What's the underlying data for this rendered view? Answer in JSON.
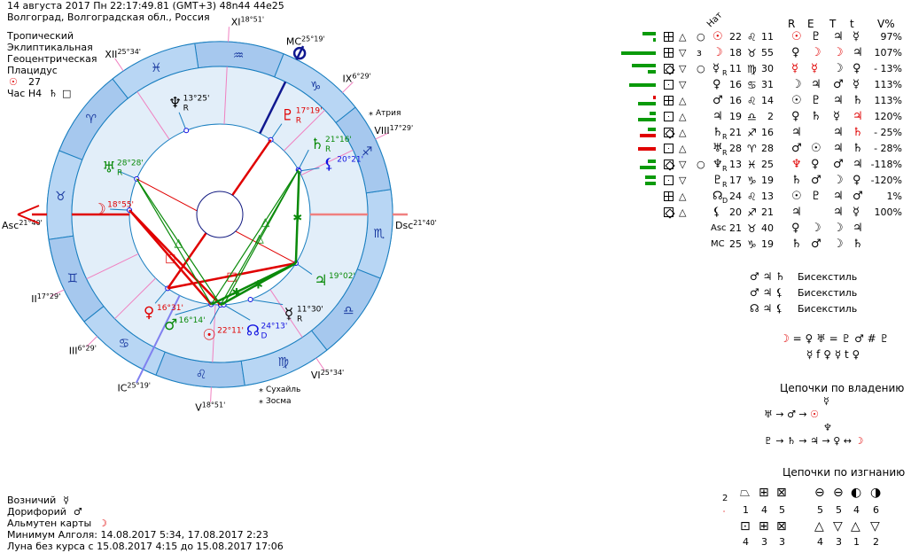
{
  "header": {
    "line1": "14 августа 2017  Пн  22:17:49.81 (GMT+3) 48n44  44e25",
    "line2": "Волгоград, Волгоградская обл., Россия"
  },
  "settings": [
    "Тропический",
    "Эклиптикальная",
    "Геоцентрическая",
    "Плацидус"
  ],
  "sun_line": {
    "glyph": "☉",
    "value": "27"
  },
  "hour_line": {
    "label": "Час H4",
    "glyph": "♄",
    "box": "□"
  },
  "colors": {
    "ring_a": "#a6c8ee",
    "ring_b": "#b8d6f4",
    "houses": "#e2eef9",
    "line": "#1a7fc0",
    "sign": "#1a3aa0",
    "cusp": "#f080c0",
    "red": "#e00000",
    "green": "#0a8a0a",
    "blue": "#1010e0"
  },
  "wheel": {
    "asc_lon": 51.67,
    "signs": [
      "♈",
      "♉",
      "♊",
      "♋",
      "♌",
      "♍",
      "♎",
      "♏",
      "♐",
      "♑",
      "♒",
      "♓"
    ],
    "houses": [
      {
        "name": "Asc",
        "deg": "21°40'",
        "lon": 51.67
      },
      {
        "name": "II",
        "deg": "17°29'",
        "lon": 77.48
      },
      {
        "name": "III",
        "deg": "6°29'",
        "lon": 96.48
      },
      {
        "name": "IC",
        "deg": "25°19'",
        "lon": 115.32
      },
      {
        "name": "V",
        "deg": "18°51'",
        "lon": 138.85
      },
      {
        "name": "VI",
        "deg": "25°34'",
        "lon": 175.57
      },
      {
        "name": "Dsc",
        "deg": "21°40'",
        "lon": 231.67
      },
      {
        "name": "VIII",
        "deg": "17°29'",
        "lon": 257.48
      },
      {
        "name": "IX",
        "deg": "6°29'",
        "lon": 276.48
      },
      {
        "name": "MC",
        "deg": "25°19'",
        "lon": 295.32
      },
      {
        "name": "XI",
        "deg": "18°51'",
        "lon": 318.85
      },
      {
        "name": "XII",
        "deg": "25°34'",
        "lon": 355.57
      }
    ],
    "planets": [
      {
        "key": "sun",
        "glyph": "☉",
        "deg": "22°11'",
        "lon": 142.18,
        "retro": "",
        "color": "#e00000"
      },
      {
        "key": "moon",
        "glyph": "☽",
        "deg": "18°55'",
        "lon": 48.92,
        "retro": "",
        "color": "#e00000"
      },
      {
        "key": "mercury",
        "glyph": "☿",
        "deg": "11°30'",
        "lon": 161.5,
        "retro": "R",
        "color": "#000000"
      },
      {
        "key": "venus",
        "glyph": "♀",
        "deg": "16°31'",
        "lon": 106.52,
        "retro": "",
        "color": "#e00000"
      },
      {
        "key": "mars",
        "glyph": "♂",
        "deg": "16°14'",
        "lon": 136.23,
        "retro": "",
        "color": "#0a8a0a"
      },
      {
        "key": "jupiter",
        "glyph": "♃",
        "deg": "19°02'",
        "lon": 199.03,
        "retro": "",
        "color": "#0a8a0a"
      },
      {
        "key": "saturn",
        "glyph": "♄",
        "deg": "21°16'",
        "lon": 261.27,
        "retro": "R",
        "color": "#0a8a0a"
      },
      {
        "key": "uranus",
        "glyph": "♅",
        "deg": "28°28'",
        "lon": 28.47,
        "retro": "R",
        "color": "#0a8a0a"
      },
      {
        "key": "neptune",
        "glyph": "♆",
        "deg": "13°25'",
        "lon": 343.42,
        "retro": "R",
        "color": "#000000"
      },
      {
        "key": "pluto",
        "glyph": "♇",
        "deg": "17°19'",
        "lon": 287.32,
        "retro": "R",
        "color": "#e00000"
      },
      {
        "key": "node",
        "glyph": "☊",
        "deg": "24°13'",
        "lon": 144.22,
        "retro": "D",
        "color": "#1010e0"
      },
      {
        "key": "lilith",
        "glyph": "⚸",
        "deg": "20°21'",
        "lon": 260.35,
        "retro": "",
        "color": "#1010e0"
      }
    ],
    "aspects": [
      {
        "a": "moon",
        "b": "mars",
        "type": "square",
        "mark": "□"
      },
      {
        "a": "moon",
        "b": "sun",
        "type": "square",
        "mark": ""
      },
      {
        "a": "venus",
        "b": "jupiter",
        "type": "square",
        "mark": "□"
      },
      {
        "a": "venus",
        "b": "pluto",
        "type": "opposition",
        "mark": ""
      },
      {
        "a": "uranus",
        "b": "jupiter",
        "type": "opposition-thin",
        "mark": ""
      },
      {
        "a": "saturn",
        "b": "sun",
        "type": "trine",
        "mark": "△"
      },
      {
        "a": "saturn",
        "b": "mars",
        "type": "trine",
        "mark": "△"
      },
      {
        "a": "saturn",
        "b": "node",
        "type": "trine",
        "mark": ""
      },
      {
        "a": "lilith",
        "b": "jupiter",
        "type": "sextile",
        "mark": "✱"
      },
      {
        "a": "jupiter",
        "b": "sun",
        "type": "sextile",
        "mark": "✱"
      },
      {
        "a": "jupiter",
        "b": "mars",
        "type": "sextile",
        "mark": "✱"
      },
      {
        "a": "uranus",
        "b": "sun",
        "type": "trine",
        "mark": "△"
      },
      {
        "a": "uranus",
        "b": "mars",
        "type": "trine",
        "mark": ""
      }
    ],
    "stars": [
      {
        "name": "Атрия"
      },
      {
        "name": "Сухайль"
      },
      {
        "name": "Зосма"
      }
    ]
  },
  "table": {
    "title": "Нат",
    "columns": [
      "R",
      "E",
      "T",
      "t",
      "V%"
    ],
    "rows": [
      {
        "bars": [
          {
            "c": "#0a9a0a",
            "v": 15
          },
          {
            "c": "#0a9a0a",
            "v": 3
          }
        ],
        "box": "grid",
        "tri": "△",
        "mark": "○",
        "p": {
          "g": "☉",
          "c": "red"
        },
        "sub": "",
        "d": "22",
        "s": "♌",
        "m": "11",
        "r": [
          [
            "☉",
            "red"
          ],
          [
            "♇",
            ""
          ],
          [
            "♃",
            ""
          ],
          [
            "☿",
            ""
          ]
        ],
        "v": "97%"
      },
      {
        "bars": [
          {
            "c": "#0a9a0a",
            "v": 39
          }
        ],
        "box": "grid",
        "tri": "▽",
        "mark": "ɜ",
        "p": {
          "g": "☽",
          "c": "red"
        },
        "sub": "",
        "d": "18",
        "s": "♉",
        "m": "55",
        "r": [
          [
            "♀",
            ""
          ],
          [
            "☽",
            "red"
          ],
          [
            "☽",
            "red"
          ],
          [
            "♃",
            ""
          ]
        ],
        "v": "107%"
      },
      {
        "bars": [
          {
            "c": "#0a9a0a",
            "v": 27
          },
          {
            "c": "#0a9a0a",
            "v": 9
          }
        ],
        "box": "diamond",
        "tri": "▽",
        "mark": "○",
        "p": {
          "g": "☿",
          "c": ""
        },
        "sub": "R",
        "d": "11",
        "s": "♍",
        "m": "30",
        "r": [
          [
            "☿",
            "red"
          ],
          [
            "☿",
            "red"
          ],
          [
            "☽",
            ""
          ],
          [
            "♀",
            ""
          ]
        ],
        "v": "- 13%"
      },
      {
        "bars": [
          {
            "c": "#0a9a0a",
            "v": 30
          }
        ],
        "box": "dot",
        "tri": "▽",
        "mark": "",
        "p": {
          "g": "♀",
          "c": ""
        },
        "sub": "",
        "d": "16",
        "s": "♋",
        "m": "31",
        "r": [
          [
            "☽",
            ""
          ],
          [
            "♃",
            ""
          ],
          [
            "♂",
            ""
          ],
          [
            "☿",
            ""
          ]
        ],
        "v": "113%"
      },
      {
        "bars": [
          {
            "c": "#e00000",
            "v": 3
          },
          {
            "c": "#0a9a0a",
            "v": 20
          }
        ],
        "box": "grid",
        "tri": "△",
        "mark": "",
        "p": {
          "g": "♂",
          "c": ""
        },
        "sub": "",
        "d": "16",
        "s": "♌",
        "m": "14",
        "r": [
          [
            "☉",
            ""
          ],
          [
            "♇",
            ""
          ],
          [
            "♃",
            ""
          ],
          [
            "♄",
            ""
          ]
        ],
        "v": "113%"
      },
      {
        "bars": [
          {
            "c": "#0a9a0a",
            "v": 7
          },
          {
            "c": "#0a9a0a",
            "v": 20
          }
        ],
        "box": "dot",
        "tri": "△",
        "mark": "",
        "p": {
          "g": "♃",
          "c": ""
        },
        "sub": "",
        "d": "19",
        "s": "♎",
        "m": "2",
        "r": [
          [
            "♀",
            ""
          ],
          [
            "♄",
            ""
          ],
          [
            "☿",
            ""
          ],
          [
            "♃",
            "red"
          ]
        ],
        "v": "120%"
      },
      {
        "bars": [
          {
            "c": "#0a9a0a",
            "v": 9
          },
          {
            "c": "#e00000",
            "v": 18
          }
        ],
        "box": "diamond",
        "tri": "△",
        "mark": "",
        "p": {
          "g": "♄",
          "c": ""
        },
        "sub": "R",
        "d": "21",
        "s": "♐",
        "m": "16",
        "r": [
          [
            "♃",
            ""
          ],
          [
            "",
            ""
          ],
          [
            "♃",
            ""
          ],
          [
            "♄",
            "red"
          ]
        ],
        "v": "- 25%"
      },
      {
        "bars": [
          {
            "c": "#e00000",
            "v": 20
          }
        ],
        "box": "dot",
        "tri": "△",
        "mark": "",
        "p": {
          "g": "♅",
          "c": ""
        },
        "sub": "R",
        "d": "28",
        "s": "♈",
        "m": "28",
        "r": [
          [
            "♂",
            ""
          ],
          [
            "☉",
            ""
          ],
          [
            "♃",
            ""
          ],
          [
            "♄",
            ""
          ]
        ],
        "v": "- 28%"
      },
      {
        "bars": [
          {
            "c": "#0a9a0a",
            "v": 9
          },
          {
            "c": "#0a9a0a",
            "v": 18
          }
        ],
        "box": "diamond",
        "tri": "▽",
        "mark": "○",
        "p": {
          "g": "♆",
          "c": ""
        },
        "sub": "R",
        "d": "13",
        "s": "♓",
        "m": "25",
        "r": [
          [
            "♆",
            "red"
          ],
          [
            "♀",
            ""
          ],
          [
            "♂",
            ""
          ],
          [
            "♃",
            ""
          ]
        ],
        "v": "-118%"
      },
      {
        "bars": [
          {
            "c": "#0a9a0a",
            "v": 12
          },
          {
            "c": "#0a9a0a",
            "v": 12
          }
        ],
        "box": "dot",
        "tri": "▽",
        "mark": "",
        "p": {
          "g": "♇",
          "c": ""
        },
        "sub": "R",
        "d": "17",
        "s": "♑",
        "m": "19",
        "r": [
          [
            "♄",
            ""
          ],
          [
            "♂",
            ""
          ],
          [
            "☽",
            ""
          ],
          [
            "♀",
            ""
          ]
        ],
        "v": "-120%"
      },
      {
        "bars": [],
        "box": "grid",
        "tri": "△",
        "mark": "",
        "p": {
          "g": "☊",
          "c": ""
        },
        "sub": "D",
        "d": "24",
        "s": "♌",
        "m": "13",
        "r": [
          [
            "☉",
            ""
          ],
          [
            "♇",
            ""
          ],
          [
            "♃",
            ""
          ],
          [
            "♂",
            ""
          ]
        ],
        "v": "1%"
      },
      {
        "bars": [],
        "box": "diamond",
        "tri": "△",
        "mark": "",
        "p": {
          "g": "⚸",
          "c": ""
        },
        "sub": "",
        "d": "20",
        "s": "♐",
        "m": "21",
        "r": [
          [
            "♃",
            ""
          ],
          [
            "",
            ""
          ],
          [
            "♃",
            ""
          ],
          [
            "☿",
            ""
          ]
        ],
        "v": "100%"
      },
      {
        "bars": [],
        "box": "",
        "tri": "",
        "mark": "",
        "p": {
          "g": "Asc",
          "c": ""
        },
        "sub": "",
        "d": "21",
        "s": "♉",
        "m": "40",
        "r": [
          [
            "♀",
            ""
          ],
          [
            "☽",
            ""
          ],
          [
            "☽",
            ""
          ],
          [
            "♃",
            ""
          ]
        ],
        "v": ""
      },
      {
        "bars": [],
        "box": "",
        "tri": "",
        "mark": "",
        "p": {
          "g": "MC",
          "c": ""
        },
        "sub": "",
        "d": "25",
        "s": "♑",
        "m": "19",
        "r": [
          [
            "♄",
            ""
          ],
          [
            "♂",
            ""
          ],
          [
            "☽",
            ""
          ],
          [
            "♄",
            ""
          ]
        ],
        "v": ""
      }
    ]
  },
  "configs": [
    {
      "glyphs": "♂ ♃ ♄",
      "label": "Бисекстиль"
    },
    {
      "glyphs": "♂ ♃ ⚸",
      "label": "Бисекстиль"
    },
    {
      "glyphs": "☊ ♃ ⚸",
      "label": "Бисекстиль"
    }
  ],
  "receptions": {
    "moon": "☽",
    "line1": "= ♀  ♅ = ♇  ♂ # ♇",
    "line2": "☿ f ♀  ☿ t ♀"
  },
  "rulership_chains": {
    "title": "Цепочки по владению",
    "top": "☿",
    "chain1": "♅ → ♂ → ",
    "chain1_end": "☉",
    "mid": "♆",
    "chain2": "♇ → ♄ → ♃ → ♀ ↔ ",
    "chain2_end": "☽"
  },
  "detriment_chains": {
    "title": "Цепочки по изгнанию",
    "side_num": "2",
    "row1": [
      {
        "g": "⏢",
        "n": "1"
      },
      {
        "g": "⊞",
        "n": "4"
      },
      {
        "g": "⊠",
        "n": "5"
      },
      {
        "g": "⊖",
        "n": "5"
      },
      {
        "g": "⊖",
        "n": "5"
      },
      {
        "g": "◐",
        "n": "4"
      },
      {
        "g": "◑",
        "n": "6"
      }
    ],
    "row2": [
      {
        "g": "⊡",
        "n": "4"
      },
      {
        "g": "⊞",
        "n": "3"
      },
      {
        "g": "⊠",
        "n": "3"
      },
      {
        "g": "△",
        "n": "4"
      },
      {
        "g": "▽",
        "n": "3"
      },
      {
        "g": "△",
        "n": "1"
      },
      {
        "g": "▽",
        "n": "2"
      }
    ]
  },
  "footer": [
    {
      "label": "Возничий",
      "glyph": "☿",
      "c": ""
    },
    {
      "label": "Дорифорий",
      "glyph": "♂",
      "c": ""
    },
    {
      "label": "Альмутен карты",
      "glyph": "☽",
      "c": "red"
    },
    {
      "label": "Минимум Алголя: 14.08.2017  5:34,  17.08.2017  2:23",
      "glyph": "",
      "c": ""
    },
    {
      "label": "Луна без курса с 15.08.2017  4:15 до 15.08.2017 17:06",
      "glyph": "",
      "c": ""
    }
  ]
}
